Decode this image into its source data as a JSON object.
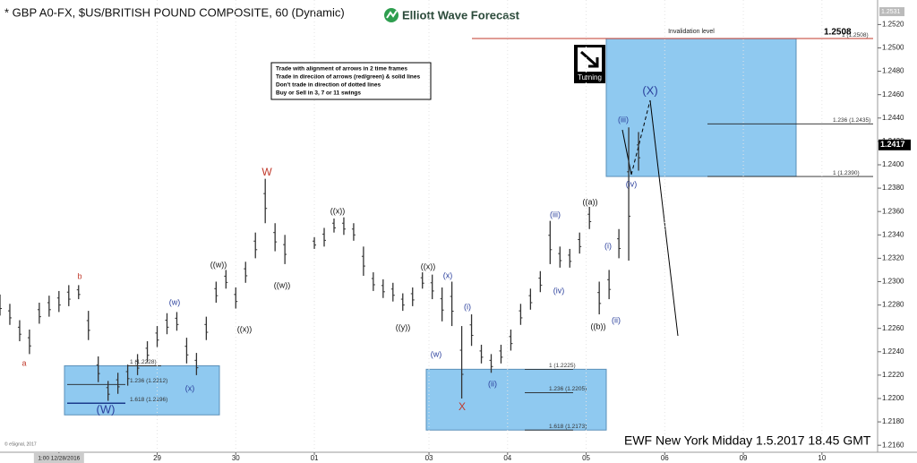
{
  "chart_data": {
    "type": "range-bar",
    "title": "* GBP A0-FX, $US/BRITISH POUND COMPOSITE, 60 (Dynamic)",
    "brand": "Elliott Wave Forecast",
    "footer": "EWF New York Midday 1.5.2017 18.45 GMT",
    "copyright": "© eSignal, 2017",
    "icon_label": "Turning",
    "notes": [
      "Trade with alignment of arrows in 2 time frames",
      "Trade in direction of arrows (red/green) & solid lines",
      "Don't trade in direction of dotted lines",
      "Buy or Sell in 3, 7 or 11 swings"
    ],
    "color": "#333333",
    "x": [
      0,
      3,
      6,
      9,
      12,
      15,
      18,
      21,
      24,
      27,
      30,
      33,
      36,
      39,
      42,
      45,
      48,
      51,
      54,
      57,
      60,
      63,
      66,
      69,
      72,
      75,
      78,
      81,
      84,
      87,
      96,
      99,
      102,
      105,
      108,
      111,
      114,
      117,
      120,
      123,
      126,
      129,
      132,
      135,
      138,
      141,
      144,
      147,
      150,
      153,
      156,
      159,
      162,
      165,
      168,
      171,
      174,
      177,
      180,
      183,
      186,
      189,
      192,
      195
    ],
    "high": [
      1.2289,
      1.2281,
      1.2267,
      1.2259,
      1.2282,
      1.2288,
      1.2292,
      1.2297,
      1.2297,
      1.2275,
      1.2236,
      1.2215,
      1.2222,
      1.2229,
      1.2238,
      1.2249,
      1.2262,
      1.2273,
      1.2274,
      1.2252,
      1.2239,
      1.227,
      1.23,
      1.231,
      1.2295,
      1.2317,
      1.2342,
      1.2388,
      1.235,
      1.234,
      1.2338,
      1.2346,
      1.2354,
      1.2355,
      1.235,
      1.233,
      1.2308,
      1.2302,
      1.2299,
      1.229,
      1.2295,
      1.2308,
      1.2306,
      1.2295,
      1.23,
      1.2262,
      1.2272,
      1.2246,
      1.2238,
      1.2246,
      1.2259,
      1.2281,
      1.2294,
      1.2309,
      1.2352,
      1.233,
      1.2328,
      1.2342,
      1.2364,
      1.23,
      1.231,
      1.2345,
      1.2432,
      1.2428
    ],
    "low": [
      1.2271,
      1.2263,
      1.2249,
      1.2238,
      1.2264,
      1.227,
      1.2274,
      1.2279,
      1.2285,
      1.225,
      1.2214,
      1.2198,
      1.2204,
      1.2211,
      1.222,
      1.2231,
      1.2244,
      1.2255,
      1.2258,
      1.223,
      1.222,
      1.225,
      1.2282,
      1.2294,
      1.2277,
      1.2299,
      1.232,
      1.235,
      1.2326,
      1.2315,
      1.2328,
      1.233,
      1.2342,
      1.234,
      1.2335,
      1.2305,
      1.2292,
      1.2286,
      1.2283,
      1.2275,
      1.2279,
      1.2294,
      1.2285,
      1.2266,
      1.2262,
      1.22,
      1.2245,
      1.223,
      1.2222,
      1.223,
      1.2241,
      1.2263,
      1.2276,
      1.2291,
      1.2315,
      1.2312,
      1.2312,
      1.2324,
      1.2345,
      1.2272,
      1.2285,
      1.232,
      1.2318,
      1.2395
    ],
    "xlim": [
      0,
      268
    ],
    "ylim": [
      1.2154,
      1.2541
    ],
    "xticks": [
      {
        "value": 18,
        "label": "1:00 12/28/2016"
      },
      {
        "value": 48,
        "label": "29"
      },
      {
        "value": 72,
        "label": "30"
      },
      {
        "value": 96,
        "label": "01"
      },
      {
        "value": 131,
        "label": "03"
      },
      {
        "value": 155,
        "label": "04"
      },
      {
        "value": 179,
        "label": "05"
      },
      {
        "value": 203,
        "label": "06"
      },
      {
        "value": 227,
        "label": "09"
      },
      {
        "value": 251,
        "label": "10"
      }
    ],
    "yticks": [
      {
        "value": 1.216,
        "label": "1.2160"
      },
      {
        "value": 1.218,
        "label": "1.2180"
      },
      {
        "value": 1.22,
        "label": "1.2200"
      },
      {
        "value": 1.222,
        "label": "1.2220"
      },
      {
        "value": 1.224,
        "label": "1.2240"
      },
      {
        "value": 1.226,
        "label": "1.2260"
      },
      {
        "value": 1.228,
        "label": "1.2280"
      },
      {
        "value": 1.23,
        "label": "1.2300"
      },
      {
        "value": 1.232,
        "label": "1.2320"
      },
      {
        "value": 1.234,
        "label": "1.2340"
      },
      {
        "value": 1.236,
        "label": "1.2360"
      },
      {
        "value": 1.238,
        "label": "1.2380"
      },
      {
        "value": 1.24,
        "label": "1.2400"
      },
      {
        "value": 1.242,
        "label": "1.2420"
      },
      {
        "value": 1.244,
        "label": "1.2440"
      },
      {
        "value": 1.246,
        "label": "1.2460"
      },
      {
        "value": 1.248,
        "label": "1.2480"
      },
      {
        "value": 1.25,
        "label": "1.2500"
      },
      {
        "value": 1.252,
        "label": "1.2520"
      }
    ],
    "axis_top_price": {
      "value": 1.2531,
      "label": "1.2531"
    },
    "last_price": {
      "value": 1.2417,
      "label": "1.2417"
    },
    "zones": [
      {
        "top": 1.2228,
        "bottom": 1.2186
      },
      {
        "top": 1.2225,
        "bottom": 1.2173
      },
      {
        "top": 1.2508,
        "bottom": 1.239
      }
    ],
    "zone_color": "#8fc9f0",
    "fib_levels": [
      {
        "value": 1.2228,
        "label": "1 (1.2228)"
      },
      {
        "value": 1.2212,
        "label": "1.236 (1.2212)"
      },
      {
        "value": 1.2196,
        "label": "1.618 (1.2196)"
      },
      {
        "value": 1.2225,
        "label": "1 (1.2225)"
      },
      {
        "value": 1.2205,
        "label": "1.236 (1.2205)"
      },
      {
        "value": 1.2173,
        "label": "1.618 (1.2173)"
      },
      {
        "value": 1.2435,
        "label": "1.236 (1.2435)"
      },
      {
        "value": 1.239,
        "label": "1 (1.2390)"
      },
      {
        "value": 1.2508,
        "label": "1 (1.2508)"
      }
    ],
    "invalidation": {
      "text": "Invalidation level",
      "value": 1.2508,
      "label": "1.2508"
    },
    "wave_labels": [
      "a",
      "b",
      "(W)",
      "(w)",
      "(x)",
      "((w))",
      "((x))",
      "W",
      "((w))",
      "((x))",
      "((y))",
      "((x))",
      "(w)",
      "(x)",
      "X",
      "(i)",
      "(ii)",
      "(iii)",
      "(iv)",
      "((a))",
      "((b))",
      "(i)",
      "(ii)",
      "(iii)",
      "(iv)",
      "(X)"
    ]
  }
}
